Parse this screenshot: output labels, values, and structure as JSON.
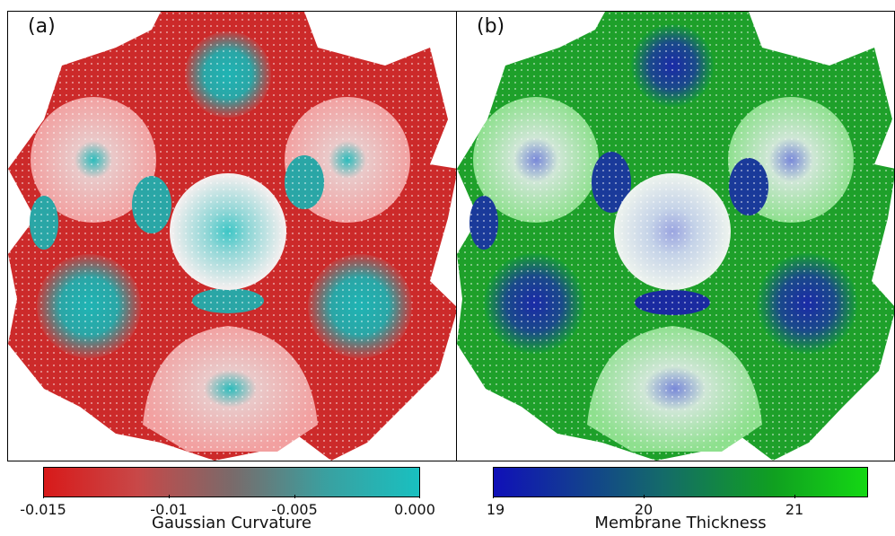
{
  "panels": [
    {
      "label": "(a)",
      "colormap": {
        "negative": "#d62020",
        "positive": "#19c4c4",
        "neutral": "#f4eaea"
      }
    },
    {
      "label": "(b)",
      "colormap": {
        "low": "#1010b8",
        "high": "#14d814",
        "neutral": "#e4ecf0"
      }
    }
  ],
  "colorbars": [
    {
      "title": "Gaussian Curvature",
      "ticks": [
        "-0.015",
        "-0.01",
        "-0.005",
        "0.000"
      ]
    },
    {
      "title": "Membrane Thickness",
      "ticks": [
        "19",
        "20",
        "21"
      ]
    }
  ]
}
